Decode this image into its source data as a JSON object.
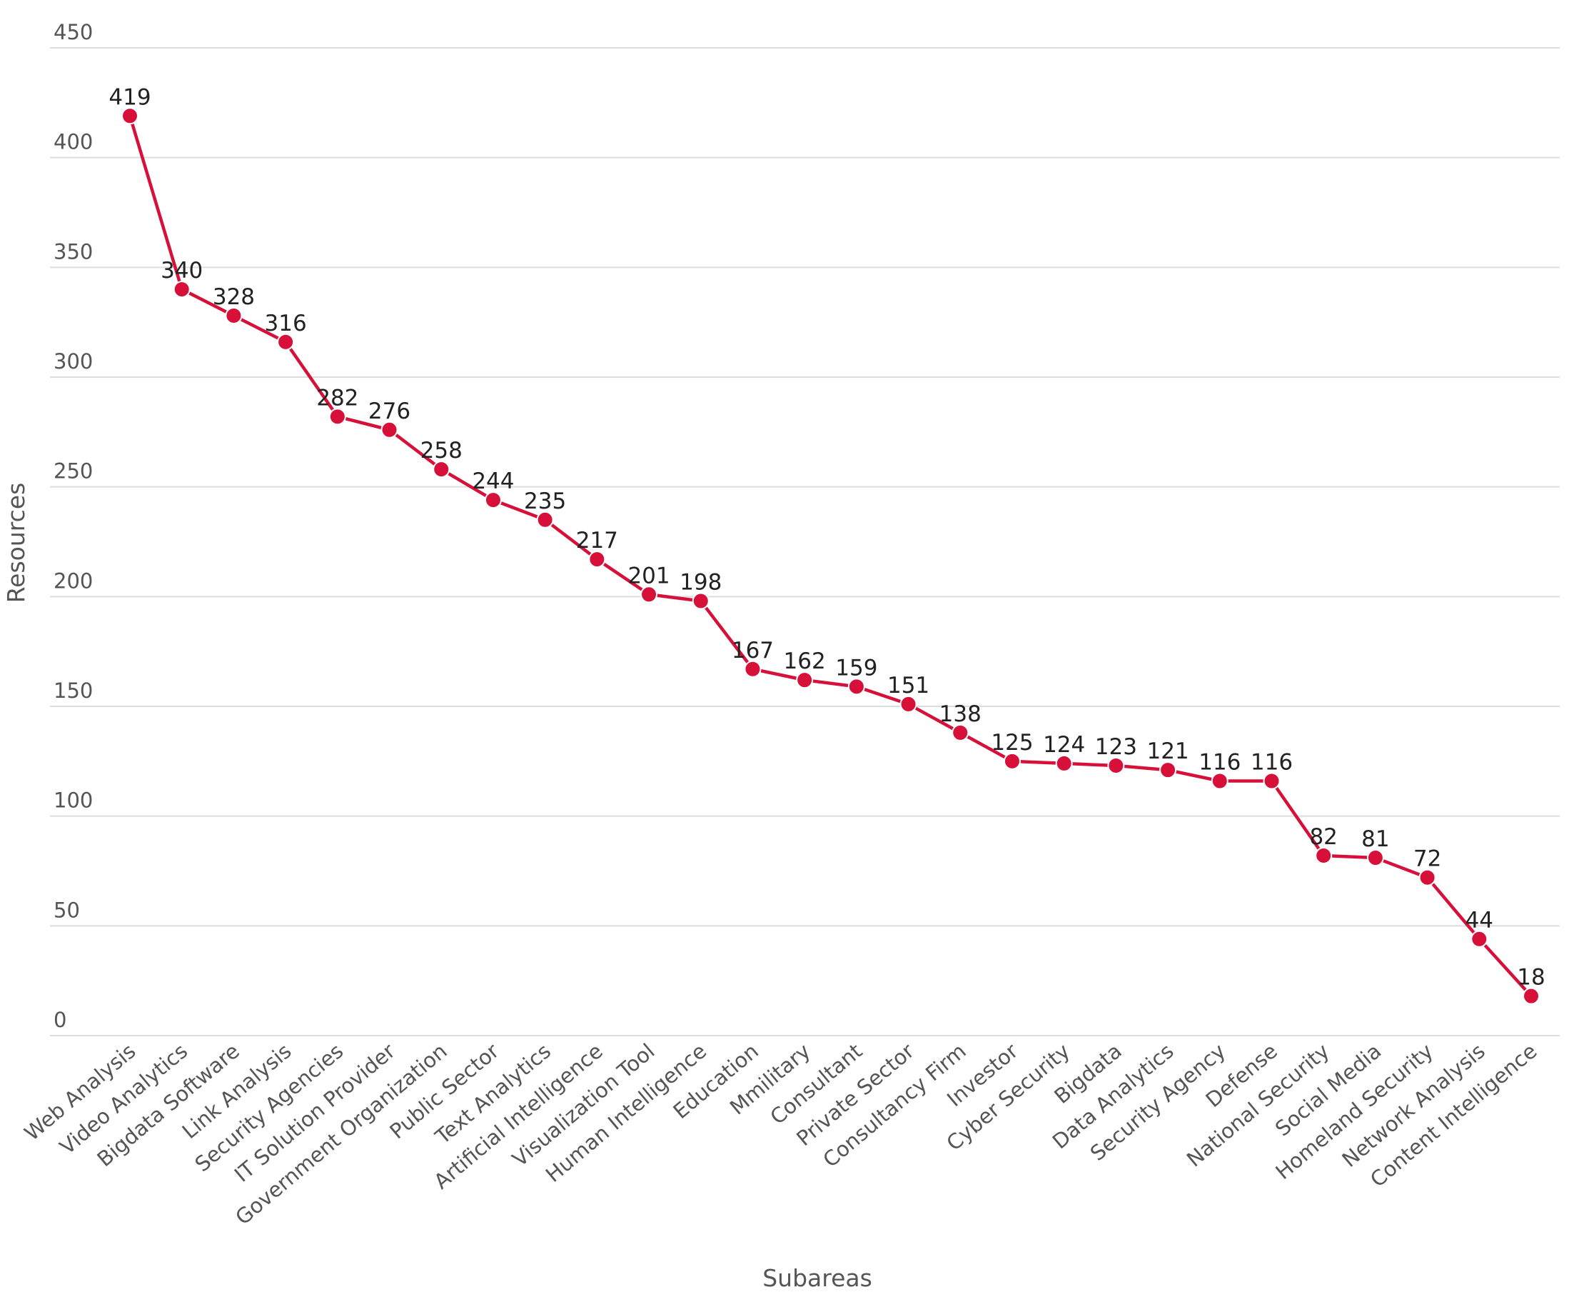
{
  "chart_data": {
    "type": "line",
    "title": "",
    "xlabel": "Subareas",
    "ylabel": "Resources",
    "ylim": [
      0,
      450
    ],
    "yticks": [
      0,
      50,
      100,
      150,
      200,
      250,
      300,
      350,
      400,
      450
    ],
    "grid": true,
    "legend": "none",
    "categories": [
      "Web Analysis",
      "Video Analytics",
      "Bigdata Software",
      "Link Analysis",
      "Security Agencies",
      "IT Solution Provider",
      "Government Organization",
      "Public Sector",
      "Text Analytics",
      "Artificial Intelligence",
      "Visualization Tool",
      "Human Intelligence",
      "Education",
      "Mmilitary",
      "Consultant",
      "Private Sector",
      "Consultancy Firm",
      "Investor",
      "Cyber Security",
      "Bigdata",
      "Data Analytics",
      "Security Agency",
      "Defense",
      "National Security",
      "Social Media",
      "Homeland Security",
      "Network Analysis",
      "Content Intelligence"
    ],
    "series": [
      {
        "name": "Resources",
        "color": "#d7103a",
        "values": [
          419,
          340,
          328,
          316,
          282,
          276,
          258,
          244,
          235,
          217,
          201,
          198,
          167,
          162,
          159,
          151,
          138,
          125,
          124,
          123,
          121,
          116,
          116,
          82,
          81,
          72,
          44,
          18
        ]
      }
    ]
  }
}
